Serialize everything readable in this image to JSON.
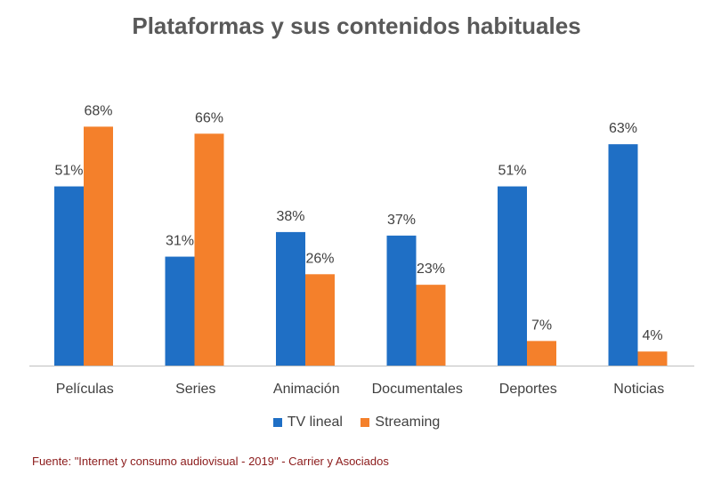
{
  "chart_data": {
    "type": "bar",
    "title": "Plataformas y sus contenidos habituales",
    "categories": [
      "Películas",
      "Series",
      "Animación",
      "Documentales",
      "Deportes",
      "Noticias"
    ],
    "series": [
      {
        "name": "TV lineal",
        "values": [
          51,
          31,
          38,
          37,
          51,
          63
        ],
        "color": "#1f6fc5"
      },
      {
        "name": "Streaming",
        "values": [
          68,
          66,
          26,
          23,
          7,
          4
        ],
        "color": "#f4802b"
      }
    ],
    "value_suffix": "%",
    "ylim": [
      0,
      100
    ],
    "grid": false,
    "legend_position": "bottom"
  },
  "source_note": "Fuente: \"Internet y consumo audiovisual - 2019\" - Carrier y Asociados"
}
